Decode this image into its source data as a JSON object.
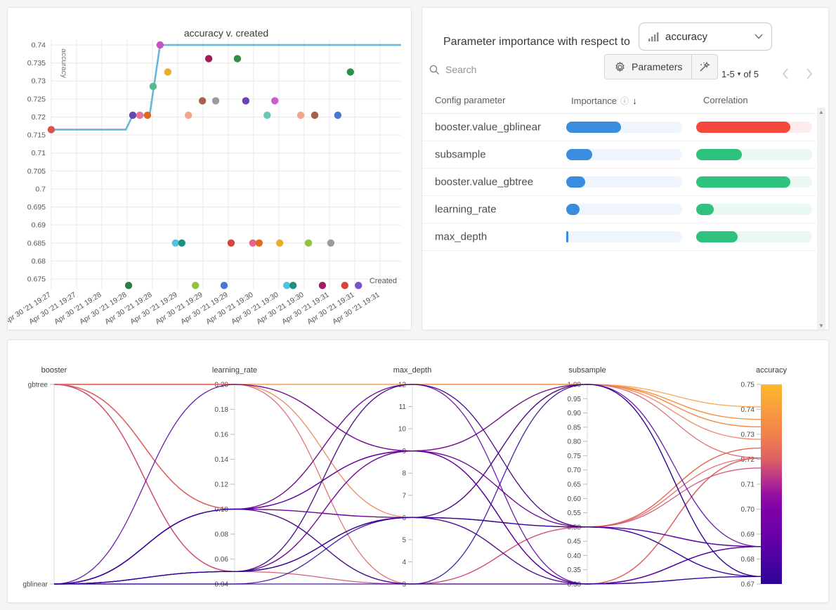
{
  "importance_ui": {
    "title": "Parameter importance with respect to",
    "metric_selector": {
      "value": "accuracy",
      "icon": "bar-chart-icon"
    },
    "search_placeholder": "Search",
    "parameters_button_label": "Parameters",
    "pagination": {
      "range": "1-5",
      "of_label": "of 5"
    },
    "columns": {
      "parameter": "Config parameter",
      "importance": "Importance",
      "correlation": "Correlation"
    },
    "colors": {
      "importance_bar": "#3a8dde",
      "importance_track": "#eef5fc",
      "positive_bar": "#2ec27e",
      "positive_track": "#e9f8f1",
      "negative_bar": "#f4483a",
      "negative_track": "#fdeceb"
    }
  },
  "chart_data": [
    {
      "type": "scatter",
      "title": "accuracy v. created",
      "xlabel": "Created",
      "ylabel": "accuracy",
      "ylim": [
        0.6725,
        0.7415
      ],
      "y_tick_labels": [
        "0.74",
        "0.735",
        "0.73",
        "0.725",
        "0.72",
        "0.715",
        "0.71",
        "0.705",
        "0.7",
        "0.695",
        "0.69",
        "0.685",
        "0.68",
        "0.675"
      ],
      "x_tick_labels": [
        "Apr 30 '21 19:27",
        "Apr 30 '21 19:27",
        "Apr 30 '21 19:28",
        "Apr 30 '21 19:28",
        "Apr 30 '21 19:28",
        "Apr 30 '21 19:29",
        "Apr 30 '21 19:29",
        "Apr 30 '21 19:29",
        "Apr 30 '21 19:30",
        "Apr 30 '21 19:30",
        "Apr 30 '21 19:30",
        "Apr 30 '21 19:31",
        "Apr 30 '21 19:31",
        "Apr 30 '21 19:31"
      ],
      "grid": true,
      "best_line": {
        "color": "#66b7da",
        "vertices": [
          [
            0.0,
            0.7165
          ],
          [
            0.213,
            0.7165
          ],
          [
            0.233,
            0.7205
          ],
          [
            0.281,
            0.7205
          ],
          [
            0.311,
            0.74
          ],
          [
            1.0,
            0.74
          ]
        ]
      },
      "points": [
        {
          "x": 0.0,
          "y": 0.7165,
          "color": "#d9534f"
        },
        {
          "x": 0.233,
          "y": 0.7205,
          "color": "#5f4bb0"
        },
        {
          "x": 0.253,
          "y": 0.7205,
          "color": "#e8709f"
        },
        {
          "x": 0.275,
          "y": 0.7205,
          "color": "#e2691e"
        },
        {
          "x": 0.291,
          "y": 0.7285,
          "color": "#58bb8f"
        },
        {
          "x": 0.311,
          "y": 0.74,
          "color": "#c653c6"
        },
        {
          "x": 0.333,
          "y": 0.7325,
          "color": "#ecac2c"
        },
        {
          "x": 0.392,
          "y": 0.7205,
          "color": "#f0a987"
        },
        {
          "x": 0.432,
          "y": 0.7245,
          "color": "#a2634d"
        },
        {
          "x": 0.45,
          "y": 0.7362,
          "color": "#a21d55"
        },
        {
          "x": 0.47,
          "y": 0.7245,
          "color": "#9b9b9b"
        },
        {
          "x": 0.532,
          "y": 0.7362,
          "color": "#2f9048"
        },
        {
          "x": 0.556,
          "y": 0.7245,
          "color": "#6a42b8"
        },
        {
          "x": 0.617,
          "y": 0.7205,
          "color": "#6cc8b4"
        },
        {
          "x": 0.639,
          "y": 0.7245,
          "color": "#c95ed1"
        },
        {
          "x": 0.713,
          "y": 0.7205,
          "color": "#f0a987"
        },
        {
          "x": 0.753,
          "y": 0.7205,
          "color": "#a2634d"
        },
        {
          "x": 0.819,
          "y": 0.7205,
          "color": "#4a77d4"
        },
        {
          "x": 0.855,
          "y": 0.7325,
          "color": "#2f9048"
        },
        {
          "x": 0.355,
          "y": 0.685,
          "color": "#4fc3e0"
        },
        {
          "x": 0.373,
          "y": 0.685,
          "color": "#1e8f83"
        },
        {
          "x": 0.514,
          "y": 0.685,
          "color": "#d9433f"
        },
        {
          "x": 0.576,
          "y": 0.685,
          "color": "#ee5f8f"
        },
        {
          "x": 0.594,
          "y": 0.685,
          "color": "#e2691e"
        },
        {
          "x": 0.653,
          "y": 0.685,
          "color": "#ecac2c"
        },
        {
          "x": 0.735,
          "y": 0.685,
          "color": "#94c13f"
        },
        {
          "x": 0.799,
          "y": 0.685,
          "color": "#9b9b9b"
        },
        {
          "x": 0.221,
          "y": 0.6732,
          "color": "#2d7d3f"
        },
        {
          "x": 0.412,
          "y": 0.6732,
          "color": "#94c13f"
        },
        {
          "x": 0.494,
          "y": 0.6732,
          "color": "#4a77d4"
        },
        {
          "x": 0.673,
          "y": 0.6732,
          "color": "#4fc3e0"
        },
        {
          "x": 0.691,
          "y": 0.6732,
          "color": "#1e8f83"
        },
        {
          "x": 0.775,
          "y": 0.6732,
          "color": "#9e1f63"
        },
        {
          "x": 0.839,
          "y": 0.6732,
          "color": "#d9433f"
        },
        {
          "x": 0.878,
          "y": 0.6732,
          "color": "#7b52c7"
        }
      ]
    },
    {
      "type": "table",
      "title": "Parameter importance with respect to accuracy",
      "columns": [
        "Config parameter",
        "Importance",
        "Correlation"
      ],
      "rows": [
        {
          "name": "booster.value_gblinear",
          "importance": 0.47,
          "correlation": 0.81,
          "correlation_sign": "negative"
        },
        {
          "name": "subsample",
          "importance": 0.225,
          "correlation": 0.395,
          "correlation_sign": "positive"
        },
        {
          "name": "booster.value_gbtree",
          "importance": 0.163,
          "correlation": 0.81,
          "correlation_sign": "positive"
        },
        {
          "name": "learning_rate",
          "importance": 0.115,
          "correlation": 0.15,
          "correlation_sign": "positive"
        },
        {
          "name": "max_depth",
          "importance": 0.02,
          "correlation": 0.355,
          "correlation_sign": "positive"
        }
      ]
    },
    {
      "type": "parallel-coordinates",
      "axes": [
        {
          "name": "booster",
          "type": "categorical",
          "categories": [
            "gbtree",
            "gblinear"
          ]
        },
        {
          "name": "learning_rate",
          "domain": [
            0.2,
            0.04
          ],
          "ticks": [
            "0.20",
            "0.18",
            "0.16",
            "0.14",
            "0.12",
            "0.10",
            "0.08",
            "0.06",
            "0.04"
          ]
        },
        {
          "name": "max_depth",
          "domain": [
            12,
            3
          ],
          "ticks": [
            "12",
            "11",
            "10",
            "9",
            "8",
            "7",
            "6",
            "5",
            "4",
            "3"
          ]
        },
        {
          "name": "subsample",
          "domain": [
            1.0,
            0.3
          ],
          "ticks": [
            "1.00",
            "0.95",
            "0.90",
            "0.85",
            "0.80",
            "0.75",
            "0.70",
            "0.65",
            "0.60",
            "0.55",
            "0.50",
            "0.45",
            "0.40",
            "0.35",
            "0.30"
          ]
        },
        {
          "name": "accuracy",
          "domain": [
            0.75,
            0.67
          ],
          "ticks": [
            "0.75",
            "0.74",
            "0.73",
            "0.72",
            "0.71",
            "0.70",
            "0.69",
            "0.68",
            "0.67"
          ],
          "colorbar": true
        }
      ],
      "color_scale": {
        "metric": "accuracy",
        "stops": [
          [
            0.67,
            "#2d0594"
          ],
          [
            0.68,
            "#4c02a1"
          ],
          [
            0.69,
            "#6a00a8"
          ],
          [
            0.7,
            "#7e03a8"
          ],
          [
            0.705,
            "#8f0da4"
          ],
          [
            0.71,
            "#ad2793"
          ],
          [
            0.72,
            "#de6065"
          ],
          [
            0.73,
            "#f2824c"
          ],
          [
            0.74,
            "#f99c3d"
          ],
          [
            0.75,
            "#fdb82d"
          ]
        ]
      },
      "runs": [
        {
          "booster": "gbtree",
          "learning_rate": 0.2,
          "max_depth": 12,
          "subsample": 1.0,
          "accuracy": 0.741
        },
        {
          "booster": "gbtree",
          "learning_rate": 0.2,
          "max_depth": 12,
          "subsample": 1.0,
          "accuracy": 0.736
        },
        {
          "booster": "gbtree",
          "learning_rate": 0.2,
          "max_depth": 9,
          "subsample": 1.0,
          "accuracy": 0.736
        },
        {
          "booster": "gbtree",
          "learning_rate": 0.05,
          "max_depth": 12,
          "subsample": 1.0,
          "accuracy": 0.733
        },
        {
          "booster": "gbtree",
          "learning_rate": 0.1,
          "max_depth": 9,
          "subsample": 1.0,
          "accuracy": 0.733
        },
        {
          "booster": "gbtree",
          "learning_rate": 0.2,
          "max_depth": 6,
          "subsample": 1.0,
          "accuracy": 0.728
        },
        {
          "booster": "gbtree",
          "learning_rate": 0.1,
          "max_depth": 6,
          "subsample": 0.5,
          "accuracy": 0.7245
        },
        {
          "booster": "gbtree",
          "learning_rate": 0.2,
          "max_depth": 9,
          "subsample": 0.5,
          "accuracy": 0.7245
        },
        {
          "booster": "gbtree",
          "learning_rate": 0.1,
          "max_depth": 12,
          "subsample": 0.5,
          "accuracy": 0.7245
        },
        {
          "booster": "gbtree",
          "learning_rate": 0.05,
          "max_depth": 9,
          "subsample": 0.3,
          "accuracy": 0.7205
        },
        {
          "booster": "gbtree",
          "learning_rate": 0.2,
          "max_depth": 3,
          "subsample": 0.3,
          "accuracy": 0.7205
        },
        {
          "booster": "gbtree",
          "learning_rate": 0.1,
          "max_depth": 3,
          "subsample": 0.5,
          "accuracy": 0.7205
        },
        {
          "booster": "gbtree",
          "learning_rate": 0.05,
          "max_depth": 6,
          "subsample": 0.3,
          "accuracy": 0.7205
        },
        {
          "booster": "gbtree",
          "learning_rate": 0.1,
          "max_depth": 6,
          "subsample": 1.0,
          "accuracy": 0.7205
        },
        {
          "booster": "gbtree",
          "learning_rate": 0.05,
          "max_depth": 3,
          "subsample": 0.5,
          "accuracy": 0.7165
        },
        {
          "booster": "gblinear",
          "learning_rate": 0.1,
          "max_depth": 9,
          "subsample": 1.0,
          "accuracy": 0.685
        },
        {
          "booster": "gblinear",
          "learning_rate": 0.1,
          "max_depth": 6,
          "subsample": 0.5,
          "accuracy": 0.685
        },
        {
          "booster": "gblinear",
          "learning_rate": 0.2,
          "max_depth": 9,
          "subsample": 0.3,
          "accuracy": 0.685
        },
        {
          "booster": "gblinear",
          "learning_rate": 0.1,
          "max_depth": 12,
          "subsample": 0.3,
          "accuracy": 0.685
        },
        {
          "booster": "gblinear",
          "learning_rate": 0.1,
          "max_depth": 9,
          "subsample": 0.5,
          "accuracy": 0.685
        },
        {
          "booster": "gblinear",
          "learning_rate": 0.05,
          "max_depth": 9,
          "subsample": 0.3,
          "accuracy": 0.685
        },
        {
          "booster": "gblinear",
          "learning_rate": 0.05,
          "max_depth": 6,
          "subsample": 1.0,
          "accuracy": 0.673
        },
        {
          "booster": "gblinear",
          "learning_rate": 0.05,
          "max_depth": 6,
          "subsample": 0.5,
          "accuracy": 0.673
        },
        {
          "booster": "gblinear",
          "learning_rate": 0.04,
          "max_depth": 3,
          "subsample": 1.0,
          "accuracy": 0.673
        },
        {
          "booster": "gblinear",
          "learning_rate": 0.05,
          "max_depth": 12,
          "subsample": 0.5,
          "accuracy": 0.673
        },
        {
          "booster": "gblinear",
          "learning_rate": 0.04,
          "max_depth": 6,
          "subsample": 0.3,
          "accuracy": 0.673
        },
        {
          "booster": "gblinear",
          "learning_rate": 0.1,
          "max_depth": 3,
          "subsample": 0.3,
          "accuracy": 0.673
        }
      ]
    }
  ]
}
